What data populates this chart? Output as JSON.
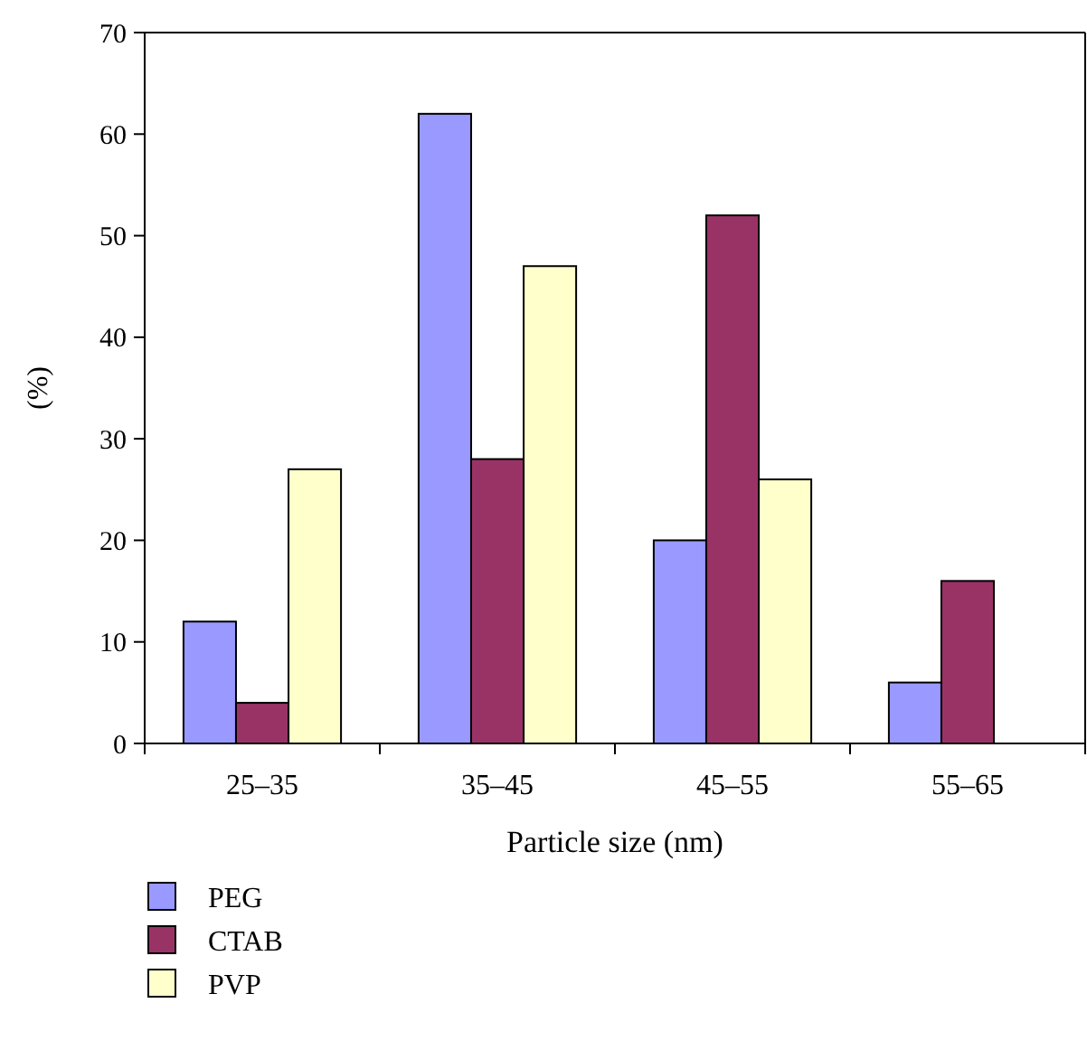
{
  "chart_data": {
    "type": "bar",
    "xlabel": "Particle size (nm)",
    "ylabel": "(%)",
    "categories": [
      "25–35",
      "35–45",
      "45–55",
      "55–65"
    ],
    "series": [
      {
        "name": "PEG",
        "color": "#9999ff",
        "values": [
          12,
          62,
          20,
          6
        ]
      },
      {
        "name": "CTAB",
        "color": "#993366",
        "values": [
          4,
          28,
          52,
          16
        ]
      },
      {
        "name": "PVP",
        "color": "#ffffcc",
        "values": [
          27,
          47,
          26,
          null
        ]
      }
    ],
    "ylim": [
      0,
      70
    ],
    "yticks": [
      0,
      10,
      20,
      30,
      40,
      50,
      60,
      70
    ],
    "grid": false,
    "legend": "bottom left"
  }
}
